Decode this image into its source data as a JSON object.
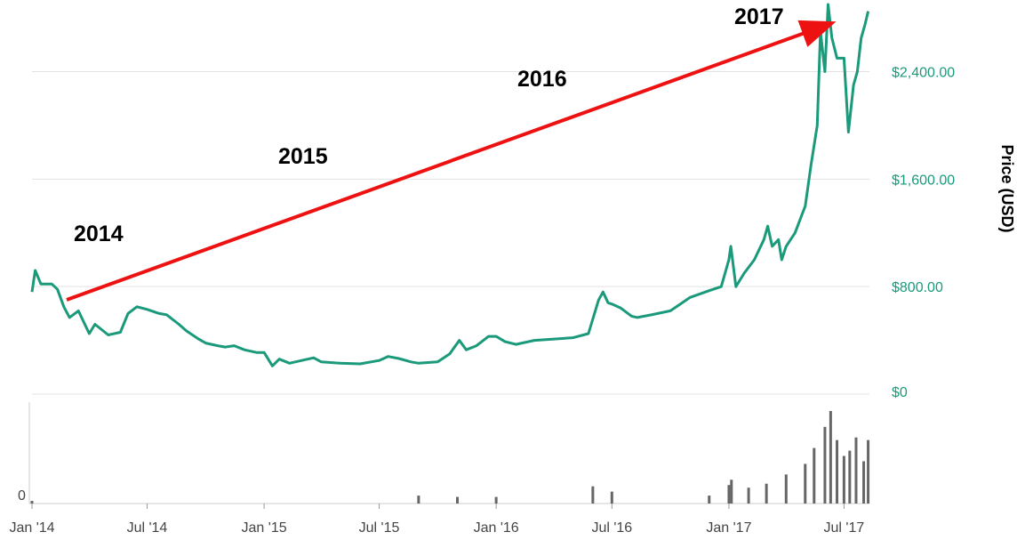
{
  "chart_data": {
    "type": "line",
    "ylabel": "Price (USD)",
    "y_tick_labels": [
      "$0",
      "$800.00",
      "$1,600.00",
      "$2,400.00"
    ],
    "y_ticks": [
      0,
      800,
      1600,
      2400
    ],
    "ylim": [
      0,
      2900
    ],
    "x_tick_labels": [
      "Jan '14",
      "Jul '14",
      "Jan '15",
      "Jul '15",
      "Jan '16",
      "Jul '16",
      "Jan '17",
      "Jul '17"
    ],
    "x_ticks": [
      "2014-01-01",
      "2014-07-01",
      "2015-01-01",
      "2015-07-01",
      "2016-01-01",
      "2016-07-01",
      "2017-01-01",
      "2017-07-01"
    ],
    "xlim": [
      "2014-01-01",
      "2017-08-10"
    ],
    "grid": true,
    "colors": {
      "price": "#1a9a7a",
      "volume": "#666666",
      "arrow": "#ee1111",
      "grid": "#e3e3e3"
    },
    "series": [
      {
        "x": [
          "2014-01-01",
          "2014-01-06",
          "2014-01-15",
          "2014-02-01",
          "2014-02-10",
          "2014-02-20",
          "2014-03-01",
          "2014-03-15",
          "2014-04-01",
          "2014-04-10",
          "2014-05-01",
          "2014-05-20",
          "2014-06-01",
          "2014-06-15",
          "2014-07-01",
          "2014-07-20",
          "2014-08-01",
          "2014-08-20",
          "2014-09-01",
          "2014-09-20",
          "2014-10-01",
          "2014-10-20",
          "2014-11-01",
          "2014-11-15",
          "2014-12-01",
          "2014-12-20",
          "2015-01-01",
          "2015-01-14",
          "2015-01-25",
          "2015-02-10",
          "2015-03-01",
          "2015-03-20",
          "2015-04-01",
          "2015-05-01",
          "2015-06-01",
          "2015-07-01",
          "2015-07-15",
          "2015-08-01",
          "2015-08-20",
          "2015-09-01",
          "2015-10-01",
          "2015-10-20",
          "2015-11-04",
          "2015-11-15",
          "2015-12-01",
          "2015-12-20",
          "2016-01-01",
          "2016-01-15",
          "2016-02-01",
          "2016-03-01",
          "2016-04-01",
          "2016-05-01",
          "2016-05-25",
          "2016-06-10",
          "2016-06-17",
          "2016-06-25",
          "2016-07-01",
          "2016-07-15",
          "2016-08-01",
          "2016-08-10",
          "2016-09-01",
          "2016-10-01",
          "2016-11-01",
          "2016-12-01",
          "2016-12-20",
          "2017-01-01",
          "2017-01-04",
          "2017-01-12",
          "2017-01-25",
          "2017-02-10",
          "2017-02-25",
          "2017-03-03",
          "2017-03-10",
          "2017-03-20",
          "2017-03-25",
          "2017-04-01",
          "2017-04-15",
          "2017-05-01",
          "2017-05-10",
          "2017-05-20",
          "2017-05-25",
          "2017-06-01",
          "2017-06-06",
          "2017-06-12",
          "2017-06-20",
          "2017-07-01",
          "2017-07-08",
          "2017-07-16",
          "2017-07-22",
          "2017-07-28",
          "2017-08-03",
          "2017-08-08"
        ],
        "y": [
          760,
          920,
          820,
          820,
          780,
          650,
          570,
          620,
          450,
          520,
          440,
          460,
          600,
          650,
          630,
          600,
          590,
          520,
          470,
          410,
          380,
          360,
          350,
          360,
          330,
          310,
          310,
          210,
          260,
          230,
          250,
          270,
          240,
          230,
          225,
          250,
          280,
          265,
          240,
          230,
          240,
          300,
          400,
          330,
          360,
          430,
          430,
          390,
          370,
          400,
          410,
          420,
          450,
          700,
          760,
          680,
          670,
          640,
          580,
          570,
          590,
          620,
          720,
          770,
          800,
          1000,
          1100,
          800,
          900,
          1000,
          1150,
          1250,
          1100,
          1150,
          1000,
          1100,
          1200,
          1400,
          1700,
          2000,
          2700,
          2400,
          2900,
          2650,
          2500,
          2500,
          1950,
          2300,
          2400,
          2650,
          2750,
          2850
        ]
      }
    ],
    "volume": {
      "y_tick_labels": [
        "0"
      ],
      "x": [
        "2014-01-01",
        "2015-09-01",
        "2015-11-01",
        "2016-01-01",
        "2016-06-01",
        "2016-07-01",
        "2016-12-01",
        "2017-01-01",
        "2017-01-05",
        "2017-02-01",
        "2017-03-01",
        "2017-04-01",
        "2017-05-01",
        "2017-05-15",
        "2017-06-01",
        "2017-06-10",
        "2017-06-20",
        "2017-07-01",
        "2017-07-10",
        "2017-07-20",
        "2017-08-01",
        "2017-08-08"
      ],
      "values": [
        2,
        6,
        5,
        5,
        13,
        9,
        6,
        14,
        18,
        12,
        15,
        22,
        30,
        42,
        58,
        70,
        48,
        36,
        40,
        50,
        32,
        48
      ]
    },
    "annotations": [
      {
        "text": "2014"
      },
      {
        "text": "2015"
      },
      {
        "text": "2016"
      },
      {
        "text": "2017"
      }
    ]
  }
}
